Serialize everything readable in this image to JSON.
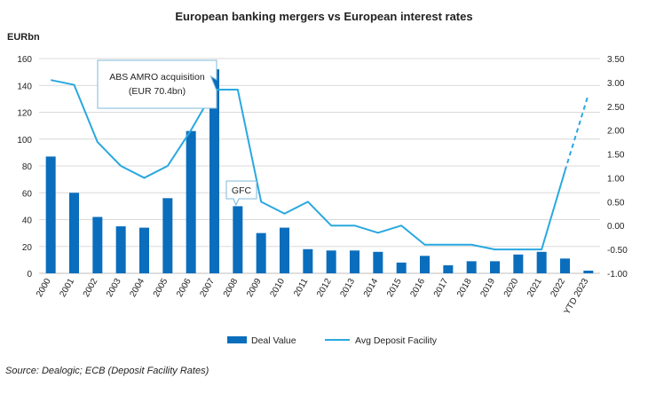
{
  "colors": {
    "bar": "#0a6ebd",
    "line": "#29a8e0",
    "grid": "#d9d9d9",
    "text": "#222222"
  },
  "source": "Source: Dealogic; ECB (Deposit Facility Rates)",
  "chart_data": {
    "type": "bar",
    "title": "European banking mergers vs European interest rates",
    "ylabel": "EURbn",
    "ylim": [
      0,
      160
    ],
    "yticks": [
      "0",
      "20",
      "40",
      "60",
      "80",
      "100",
      "120",
      "140",
      "160"
    ],
    "y2lim": [
      -1.0,
      3.5
    ],
    "y2ticks": [
      "-1.00",
      "-0.50",
      "0.00",
      "0.50",
      "1.00",
      "1.50",
      "2.00",
      "2.50",
      "3.00",
      "3.50"
    ],
    "categories": [
      "2000",
      "2001",
      "2002",
      "2003",
      "2004",
      "2005",
      "2006",
      "2007",
      "2008",
      "2009",
      "2010",
      "2011",
      "2012",
      "2013",
      "2014",
      "2015",
      "2016",
      "2017",
      "2018",
      "2019",
      "2020",
      "2021",
      "2022",
      "YTD 2023"
    ],
    "grid": "horizontal",
    "legend_position": "bottom",
    "series": [
      {
        "name": "Deal Value",
        "type": "bar",
        "axis": "left",
        "values": [
          87,
          60,
          42,
          35,
          34,
          56,
          106,
          152,
          50,
          30,
          34,
          18,
          17,
          17,
          16,
          8,
          13,
          6,
          9,
          9,
          14,
          16,
          11,
          2
        ]
      },
      {
        "name": "Avg Deposit Facility",
        "type": "line",
        "axis": "right",
        "values": [
          3.05,
          2.95,
          1.75,
          1.25,
          1.0,
          1.25,
          2.0,
          2.85,
          2.85,
          0.5,
          0.25,
          0.5,
          0.0,
          0.0,
          -0.15,
          0.0,
          -0.4,
          -0.4,
          -0.4,
          -0.5,
          -0.5,
          -0.5,
          1.15,
          2.75
        ],
        "dashed_from_index": 22
      }
    ],
    "annotations": [
      {
        "text_line1": "ABS AMRO acquisition",
        "text_line2": "(EUR 70.4bn)",
        "target_category": "2007"
      },
      {
        "text": "GFC",
        "target_category": "2008"
      }
    ]
  }
}
